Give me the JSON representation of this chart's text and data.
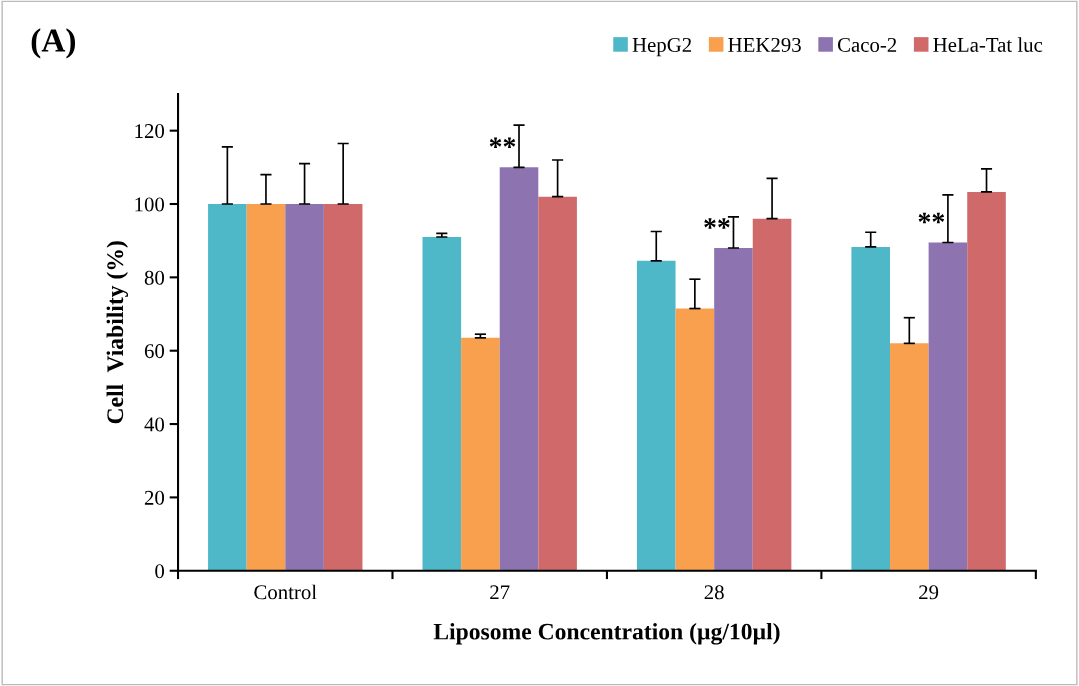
{
  "chart_data": {
    "type": "bar",
    "title": "(A)",
    "xlabel": "Liposome Concentration (µg/10µl)",
    "ylabel": "Cell  Viability (%)",
    "categories": [
      "Control",
      "27",
      "28",
      "29"
    ],
    "series": [
      {
        "name": "HepG2",
        "color": "#4fb8c8",
        "values": [
          100,
          91,
          84.5,
          88.3
        ],
        "errors": [
          15.6,
          1,
          8,
          4
        ]
      },
      {
        "name": "HEK293",
        "color": "#f9a04e",
        "values": [
          100,
          63.5,
          71.5,
          62
        ],
        "errors": [
          8,
          1,
          8,
          7
        ]
      },
      {
        "name": "Caco-2",
        "color": "#8d74b0",
        "values": [
          100,
          110,
          88,
          89.5
        ],
        "errors": [
          11,
          11.5,
          8.5,
          13
        ]
      },
      {
        "name": "HeLa-Tat luc",
        "color": "#d06a6a",
        "values": [
          100,
          102,
          96,
          103.3
        ],
        "errors": [
          16.5,
          10,
          11,
          6.3
        ]
      }
    ],
    "annotations": [
      {
        "text": "**",
        "x": "27",
        "y": 110
      },
      {
        "text": "**",
        "x": "28",
        "y": 88
      },
      {
        "text": "**",
        "x": "29",
        "y": 89.5
      }
    ],
    "ylim": [
      0,
      130
    ],
    "yticks": [
      0,
      20,
      40,
      60,
      80,
      100,
      120
    ],
    "grid": false,
    "legend": "top right"
  }
}
